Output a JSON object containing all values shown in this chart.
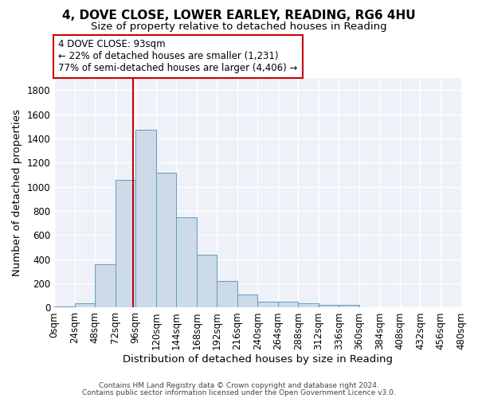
{
  "title_line1": "4, DOVE CLOSE, LOWER EARLEY, READING, RG6 4HU",
  "title_line2": "Size of property relative to detached houses in Reading",
  "xlabel": "Distribution of detached houses by size in Reading",
  "ylabel": "Number of detached properties",
  "footnote1": "Contains HM Land Registry data © Crown copyright and database right 2024.",
  "footnote2": "Contains public sector information licensed under the Open Government Licence v3.0.",
  "property_size": 93,
  "annotation_text": "4 DOVE CLOSE: 93sqm\n← 22% of detached houses are smaller (1,231)\n77% of semi-detached houses are larger (4,406) →",
  "vline_x": 93,
  "bar_color": "#ccdaea",
  "bar_edge_color": "#6699bb",
  "vline_color": "#cc0000",
  "annotation_box_color": "#cc0000",
  "background_color": "#eef2f8",
  "grid_color": "#ffffff",
  "bin_edges": [
    0,
    24,
    48,
    72,
    96,
    120,
    144,
    168,
    192,
    216,
    240,
    264,
    288,
    312,
    336,
    360,
    384,
    408,
    432,
    456,
    480
  ],
  "bar_values": [
    10,
    35,
    360,
    1060,
    1470,
    1115,
    750,
    435,
    220,
    110,
    50,
    50,
    35,
    25,
    20,
    5,
    5,
    5,
    2,
    2
  ],
  "ylim": [
    0,
    1900
  ],
  "yticks": [
    0,
    200,
    400,
    600,
    800,
    1000,
    1200,
    1400,
    1600,
    1800
  ],
  "tick_label_fontsize": 8.5,
  "axis_label_fontsize": 9.5,
  "title1_fontsize": 11,
  "title2_fontsize": 9.5,
  "annotation_fontsize": 8.5,
  "footnote_fontsize": 6.5
}
